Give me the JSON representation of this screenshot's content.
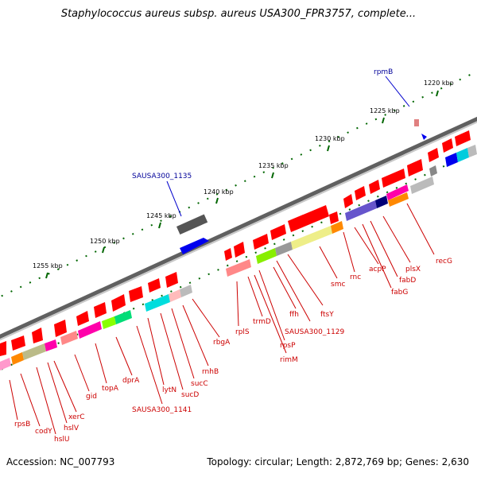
{
  "title": "Staphylococcus aureus subsp. aureus USA300_FPR3757, complete...",
  "footer": {
    "accession": "Accession: NC_007793",
    "summary": "Topology: circular; Length: 2,872,769 bp; Genes: 2,630"
  },
  "kbp_labels": [
    "1220 kbp",
    "1225 kbp",
    "1230 kbp",
    "1235 kbp",
    "1240 kbp",
    "1245 kbp",
    "1250 kbp",
    "1255 kbp"
  ],
  "genes_top": [
    "rpmB",
    "SAUSA300_1135"
  ],
  "genes_bottom": [
    "recG",
    "plsX",
    "fabD",
    "fabG",
    "acpP",
    "rnc",
    "smc",
    "ftsY",
    "ffh",
    "SAUSA300_1129",
    "rpsP",
    "rimM",
    "trmD",
    "rplS",
    "rbgA",
    "rnhB",
    "sucC",
    "sucD",
    "lytN",
    "SAUSA300_1141",
    "dprA",
    "topA",
    "gid",
    "xerC",
    "hslV",
    "hslU",
    "codY",
    "rpsB"
  ],
  "colors": {
    "backbone": "#808080",
    "gene_arrow": "#ff0000",
    "label_red": "#cc0000",
    "label_blue": "#000099",
    "tick_green": "#006600"
  }
}
